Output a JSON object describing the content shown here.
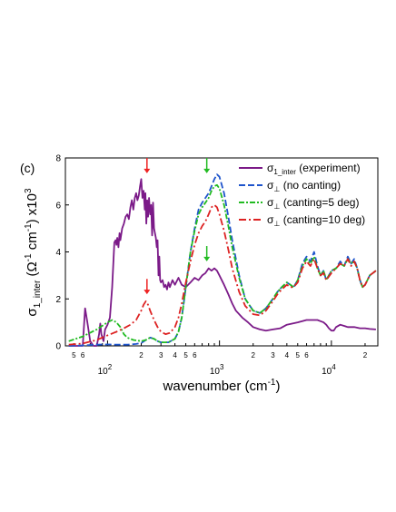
{
  "panel_label": "(c)",
  "chart_data": {
    "type": "line",
    "title": "",
    "xlabel": "wavenumber (cm⁻¹)",
    "xlabel_parts": {
      "main": "wavenumber (cm",
      "sup": "-1",
      "close": ")"
    },
    "ylabel_parts": {
      "main": "σ",
      "sub": "1_inter",
      "open": " (Ω",
      "sup1": "-1",
      "mid": " cm",
      "sup2": "-1",
      "close": ") x10",
      "sup3": "3"
    },
    "x_scale": "log",
    "xlim": [
      42,
      26000
    ],
    "ylim": [
      0,
      8
    ],
    "y_ticks": [
      0,
      2,
      4,
      6,
      8
    ],
    "x_major_ticks": [
      {
        "value": 100,
        "base": "10",
        "exp": "2"
      },
      {
        "value": 1000,
        "base": "10",
        "exp": "3"
      },
      {
        "value": 10000,
        "base": "10",
        "exp": "4"
      }
    ],
    "x_minor_labels": [
      {
        "value": 50,
        "label": "5"
      },
      {
        "value": 60,
        "label": "6"
      },
      {
        "value": 200,
        "label": "2"
      },
      {
        "value": 300,
        "label": "3"
      },
      {
        "value": 400,
        "label": "4"
      },
      {
        "value": 500,
        "label": "5"
      },
      {
        "value": 600,
        "label": "6"
      },
      {
        "value": 2000,
        "label": "2"
      },
      {
        "value": 3000,
        "label": "3"
      },
      {
        "value": 4000,
        "label": "4"
      },
      {
        "value": 5000,
        "label": "5"
      },
      {
        "value": 6000,
        "label": "6"
      },
      {
        "value": 20000,
        "label": "2"
      }
    ],
    "legend_position": "top-right",
    "series": [
      {
        "name": "σ_1_inter (experiment)",
        "legend": {
          "sym": "σ",
          "sub": "1_inter",
          "text": " (experiment)"
        },
        "color": "#7b1a88",
        "dash": "solid",
        "x": [
          45,
          55,
          60,
          63,
          66,
          70,
          75,
          80,
          84,
          86,
          88,
          92,
          95,
          100,
          105,
          110,
          115,
          118,
          120,
          122,
          125,
          128,
          130,
          135,
          140,
          145,
          150,
          155,
          160,
          165,
          170,
          175,
          180,
          185,
          190,
          195,
          200,
          205,
          210,
          215,
          218,
          222,
          226,
          230,
          235,
          240,
          245,
          250,
          255,
          260,
          265,
          270,
          275,
          280,
          285,
          290,
          295,
          300,
          310,
          320,
          330,
          340,
          350,
          360,
          380,
          400,
          430,
          460,
          500,
          550,
          600,
          650,
          700,
          750,
          800,
          850,
          900,
          950,
          1000,
          1100,
          1200,
          1300,
          1400,
          1600,
          1800,
          2000,
          2300,
          2600,
          3000,
          3500,
          4000,
          4500,
          5000,
          5500,
          6000,
          6500,
          7000,
          7500,
          8000,
          8500,
          9000,
          9500,
          10000,
          10500,
          11000,
          12000,
          13000,
          14000,
          16000,
          18000,
          20000,
          22000,
          25000
        ],
        "y": [
          0,
          0,
          0,
          1.6,
          1.0,
          0.2,
          0,
          0,
          0.5,
          0.95,
          0.5,
          0.2,
          0.7,
          0.9,
          1.2,
          2.5,
          4.4,
          4.5,
          4.3,
          4.6,
          4.2,
          4.8,
          4.5,
          5.0,
          5.2,
          5.5,
          5.6,
          5.4,
          5.9,
          6.2,
          5.8,
          6.3,
          6.5,
          6.2,
          6.4,
          6.8,
          7.1,
          6.3,
          6.6,
          5.8,
          6.5,
          5.2,
          6.2,
          5.5,
          6.3,
          5.6,
          6.0,
          4.7,
          6.1,
          5.0,
          4.8,
          4.6,
          4.2,
          4.5,
          3.0,
          3.8,
          2.8,
          2.7,
          2.8,
          2.5,
          2.6,
          2.4,
          2.7,
          2.5,
          2.8,
          2.6,
          2.9,
          2.6,
          2.5,
          2.7,
          2.9,
          2.8,
          3.0,
          3.1,
          3.3,
          3.2,
          3.3,
          3.2,
          3.0,
          2.6,
          2.2,
          1.8,
          1.5,
          1.2,
          1.0,
          0.8,
          0.7,
          0.65,
          0.7,
          0.75,
          0.9,
          0.95,
          1.0,
          1.05,
          1.1,
          1.1,
          1.1,
          1.1,
          1.05,
          1.0,
          0.9,
          0.75,
          0.65,
          0.65,
          0.8,
          0.9,
          0.85,
          0.8,
          0.8,
          0.75,
          0.75,
          0.72,
          0.7
        ]
      },
      {
        "name": "σ_⊥ (no canting)",
        "legend": {
          "sym": "σ",
          "sub": "⊥",
          "text": " (no canting)"
        },
        "color": "#1f55cc",
        "dash": "7,3",
        "x": [
          45,
          60,
          80,
          100,
          120,
          150,
          180,
          200,
          220,
          240,
          260,
          280,
          300,
          350,
          400,
          430,
          460,
          500,
          550,
          600,
          650,
          700,
          750,
          800,
          850,
          900,
          950,
          1000,
          1100,
          1200,
          1300,
          1500,
          1700,
          2000,
          2300,
          2600,
          3000,
          3300,
          3600,
          4000,
          4300,
          4600,
          5000,
          5500,
          6000,
          6500,
          7000,
          7500,
          8000,
          8500,
          9000,
          10000,
          11000,
          12000,
          13000,
          14000,
          15000,
          16000,
          17000,
          18000,
          19000,
          20000,
          22000,
          25000
        ],
        "y": [
          0.0,
          0.02,
          0.05,
          0.06,
          0.05,
          0.05,
          0.08,
          0.12,
          0.25,
          0.35,
          0.3,
          0.2,
          0.15,
          0.15,
          0.3,
          0.6,
          1.2,
          2.5,
          4.0,
          5.0,
          5.8,
          6.1,
          6.3,
          6.5,
          6.8,
          7.1,
          7.3,
          7.2,
          6.5,
          5.5,
          4.5,
          3.0,
          2.0,
          1.5,
          1.4,
          1.6,
          2.0,
          2.3,
          2.5,
          2.7,
          2.6,
          2.5,
          2.8,
          3.5,
          3.8,
          3.6,
          4.0,
          3.4,
          3.0,
          3.2,
          2.8,
          3.2,
          3.3,
          3.6,
          3.4,
          3.8,
          3.5,
          3.7,
          3.3,
          2.8,
          2.5,
          2.6,
          3.0,
          3.2
        ]
      },
      {
        "name": "σ_⊥ (canting=5 deg)",
        "legend": {
          "sym": "σ",
          "sub": "⊥",
          "text": " (canting=5 deg)"
        },
        "color": "#22bb22",
        "dash": "6,2,2,2",
        "x": [
          45,
          60,
          80,
          100,
          110,
          120,
          130,
          140,
          150,
          170,
          200,
          220,
          240,
          260,
          280,
          300,
          350,
          400,
          430,
          460,
          500,
          550,
          600,
          650,
          700,
          750,
          800,
          850,
          900,
          950,
          1000,
          1100,
          1200,
          1300,
          1500,
          1700,
          2000,
          2300,
          2600,
          3000,
          3300,
          3600,
          4000,
          4300,
          4600,
          5000,
          5500,
          6000,
          6500,
          7000,
          7500,
          8000,
          8500,
          9000,
          10000,
          11000,
          12000,
          13000,
          14000,
          15000,
          16000,
          17000,
          18000,
          19000,
          20000,
          22000,
          25000
        ],
        "y": [
          0.2,
          0.4,
          0.7,
          1.0,
          1.1,
          1.0,
          0.8,
          0.5,
          0.35,
          0.25,
          0.2,
          0.25,
          0.35,
          0.3,
          0.2,
          0.15,
          0.15,
          0.3,
          0.6,
          1.2,
          2.5,
          4.0,
          4.9,
          5.6,
          5.9,
          6.1,
          6.3,
          6.6,
          6.8,
          6.85,
          6.7,
          6.0,
          5.1,
          4.2,
          2.9,
          2.0,
          1.5,
          1.4,
          1.6,
          2.0,
          2.3,
          2.5,
          2.7,
          2.6,
          2.5,
          2.8,
          3.4,
          3.7,
          3.5,
          3.8,
          3.3,
          3.0,
          3.2,
          2.8,
          3.2,
          3.3,
          3.5,
          3.4,
          3.7,
          3.5,
          3.6,
          3.3,
          2.8,
          2.5,
          2.6,
          3.0,
          3.2
        ]
      },
      {
        "name": "σ_⊥ (canting=10 deg)",
        "legend": {
          "sym": "σ",
          "sub": "⊥",
          "text": " (canting=10 deg)"
        },
        "color": "#dd2222",
        "dash": "8,3,2,3",
        "x": [
          45,
          60,
          80,
          100,
          120,
          140,
          160,
          180,
          200,
          210,
          220,
          230,
          240,
          260,
          280,
          300,
          330,
          360,
          400,
          430,
          460,
          500,
          550,
          600,
          650,
          700,
          750,
          800,
          850,
          900,
          950,
          1000,
          1100,
          1200,
          1300,
          1500,
          1700,
          2000,
          2300,
          2600,
          3000,
          3300,
          3600,
          4000,
          4300,
          4600,
          5000,
          5500,
          6000,
          6500,
          7000,
          7500,
          8000,
          8500,
          9000,
          10000,
          11000,
          12000,
          13000,
          14000,
          15000,
          16000,
          17000,
          18000,
          19000,
          20000,
          22000,
          25000
        ],
        "y": [
          0.05,
          0.1,
          0.25,
          0.45,
          0.6,
          0.75,
          0.9,
          1.1,
          1.5,
          1.75,
          1.9,
          1.75,
          1.5,
          1.1,
          0.8,
          0.6,
          0.5,
          0.55,
          0.8,
          1.2,
          1.8,
          2.7,
          3.6,
          4.3,
          4.8,
          5.1,
          5.3,
          5.6,
          5.9,
          6.0,
          5.9,
          5.6,
          4.9,
          4.1,
          3.3,
          2.3,
          1.7,
          1.35,
          1.3,
          1.5,
          1.9,
          2.2,
          2.4,
          2.6,
          2.5,
          2.5,
          2.7,
          3.3,
          3.6,
          3.4,
          3.7,
          3.3,
          3.0,
          3.1,
          2.8,
          3.1,
          3.3,
          3.5,
          3.4,
          3.7,
          3.4,
          3.6,
          3.3,
          2.8,
          2.5,
          2.6,
          3.0,
          3.2
        ]
      }
    ],
    "annotations": [
      {
        "type": "arrow-down",
        "color": "#ee2222",
        "x": 225,
        "y_tip": 7.35,
        "y_tail": 8.0
      },
      {
        "type": "arrow-down",
        "color": "#ee2222",
        "x": 225,
        "y_tip": 2.2,
        "y_tail": 2.85
      },
      {
        "type": "arrow-down",
        "color": "#22bb22",
        "x": 770,
        "y_tip": 7.35,
        "y_tail": 8.0
      },
      {
        "type": "arrow-down",
        "color": "#22bb22",
        "x": 770,
        "y_tip": 3.6,
        "y_tail": 4.25
      }
    ]
  }
}
